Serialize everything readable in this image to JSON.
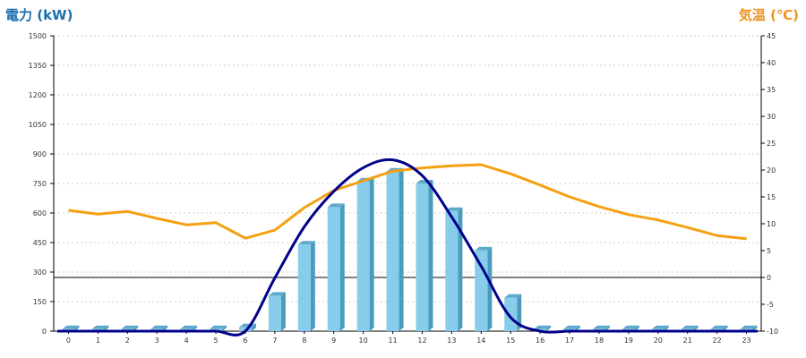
{
  "chart_data": {
    "type": "bar",
    "categories": [
      "0",
      "1",
      "2",
      "3",
      "4",
      "5",
      "6",
      "7",
      "8",
      "9",
      "10",
      "11",
      "12",
      "13",
      "14",
      "15",
      "16",
      "17",
      "18",
      "19",
      "20",
      "21",
      "22",
      "23"
    ],
    "left_axis": {
      "title": "電力 (kW)",
      "ylim": [
        0,
        1500
      ],
      "ticks": [
        0,
        150,
        300,
        450,
        600,
        750,
        900,
        1050,
        1200,
        1350,
        1500
      ],
      "tick_labels": [
        "0",
        "150",
        "300",
        "450",
        "600",
        "750",
        "900",
        "1050",
        "1200",
        "1350",
        "1500"
      ]
    },
    "right_axis": {
      "title": "気温 (℃)",
      "ylim": [
        -10,
        45
      ],
      "ticks": [
        -10,
        -5,
        0,
        5,
        10,
        15,
        20,
        25,
        30,
        35,
        40,
        45
      ],
      "tick_labels": [
        "-10",
        "-5",
        "0",
        "5",
        "10",
        "15",
        "20",
        "25",
        "30",
        "35",
        "40",
        "45"
      ]
    },
    "series": [
      {
        "kind": "bar",
        "axis": "left",
        "values": [
          10,
          10,
          10,
          10,
          10,
          10,
          20,
          180,
          440,
          630,
          760,
          810,
          750,
          610,
          410,
          170,
          10,
          10,
          10,
          10,
          10,
          10,
          10,
          10
        ]
      },
      {
        "kind": "line",
        "axis": "left",
        "values": [
          0,
          0,
          0,
          0,
          0,
          0,
          0,
          270,
          530,
          710,
          830,
          870,
          790,
          580,
          330,
          70,
          0,
          0,
          0,
          0,
          0,
          0,
          0,
          0
        ]
      },
      {
        "kind": "line",
        "axis": "right",
        "values": [
          12.5,
          11.8,
          12.3,
          11.0,
          9.8,
          10.2,
          7.3,
          8.8,
          13.0,
          16.2,
          18.0,
          19.8,
          20.4,
          20.8,
          21.0,
          19.3,
          17.2,
          15.0,
          13.2,
          11.7,
          10.7,
          9.3,
          7.8,
          7.2
        ]
      }
    ],
    "grid": true,
    "colors": {
      "left_title": "#1a6fb0",
      "right_title": "#f0901e",
      "bar_front": "#87ccea",
      "bar_side": "#4a9bbd",
      "bar_top": "#5fa9cc",
      "power_line": "#00008b",
      "temp_line": "#f5a011",
      "grid": "#cccccc",
      "zero_line": "#000000"
    }
  }
}
